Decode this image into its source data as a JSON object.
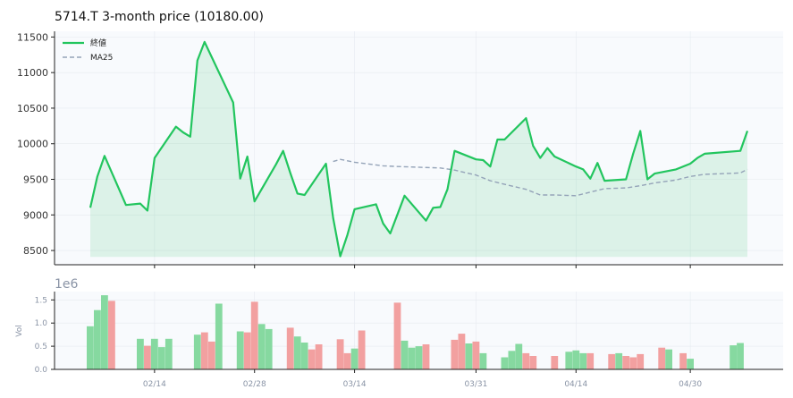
{
  "chart_data": [
    {
      "type": "line",
      "title": "5714.T  3-month price (10180.00)",
      "ylim": [
        8300,
        11580
      ],
      "yticks": [
        8500,
        9000,
        9500,
        10000,
        10500,
        11000,
        11500
      ],
      "grid": true,
      "legend_position": "top-left",
      "colors": {
        "close": "#22c55e",
        "fill": "#22c55e",
        "ma": "#94a3b8"
      },
      "series": [
        {
          "name": "終値",
          "style": "solid",
          "x": [
            "2025-02-05",
            "2025-02-06",
            "2025-02-07",
            "2025-02-10",
            "2025-02-12",
            "2025-02-13",
            "2025-02-14",
            "2025-02-17",
            "2025-02-18",
            "2025-02-19",
            "2025-02-20",
            "2025-02-21",
            "2025-02-25",
            "2025-02-26",
            "2025-02-27",
            "2025-02-28",
            "2025-03-03",
            "2025-03-04",
            "2025-03-05",
            "2025-03-06",
            "2025-03-07",
            "2025-03-10",
            "2025-03-11",
            "2025-03-12",
            "2025-03-13",
            "2025-03-14",
            "2025-03-17",
            "2025-03-18",
            "2025-03-19",
            "2025-03-21",
            "2025-03-24",
            "2025-03-25",
            "2025-03-26",
            "2025-03-27",
            "2025-03-28",
            "2025-03-31",
            "2025-04-01",
            "2025-04-02",
            "2025-04-03",
            "2025-04-04",
            "2025-04-07",
            "2025-04-08",
            "2025-04-09",
            "2025-04-10",
            "2025-04-11",
            "2025-04-14",
            "2025-04-15",
            "2025-04-16",
            "2025-04-17",
            "2025-04-18",
            "2025-04-21",
            "2025-04-22",
            "2025-04-23",
            "2025-04-24",
            "2025-04-25",
            "2025-04-28",
            "2025-04-30",
            "2025-05-01",
            "2025-05-02",
            "2025-05-07",
            "2025-05-08"
          ],
          "values": [
            9100,
            9540,
            9830,
            9140,
            9160,
            9060,
            9800,
            10240,
            10160,
            10100,
            11170,
            11430,
            10580,
            9510,
            9820,
            9190,
            9710,
            9900,
            9590,
            9300,
            9280,
            9720,
            8960,
            8420,
            8720,
            9080,
            9150,
            8880,
            8740,
            9270,
            8920,
            9100,
            9110,
            9360,
            9900,
            9780,
            9770,
            9680,
            10060,
            10060,
            10360,
            9970,
            9800,
            9940,
            9820,
            9680,
            9640,
            9510,
            9730,
            9480,
            9500,
            9860,
            10180,
            9500,
            9580,
            9640,
            9720,
            9800,
            9860,
            9900,
            10180
          ]
        },
        {
          "name": "MA25",
          "style": "dashed",
          "x": [
            "2025-03-11",
            "2025-03-12",
            "2025-03-14",
            "2025-03-18",
            "2025-03-20",
            "2025-03-26",
            "2025-03-28",
            "2025-03-31",
            "2025-04-02",
            "2025-04-04",
            "2025-04-07",
            "2025-04-09",
            "2025-04-11",
            "2025-04-14",
            "2025-04-16",
            "2025-04-18",
            "2025-04-21",
            "2025-04-23",
            "2025-04-25",
            "2025-04-28",
            "2025-04-30",
            "2025-05-02",
            "2025-05-07",
            "2025-05-08"
          ],
          "values": [
            9750,
            9780,
            9740,
            9690,
            9680,
            9660,
            9630,
            9560,
            9480,
            9430,
            9360,
            9280,
            9280,
            9270,
            9320,
            9370,
            9380,
            9410,
            9450,
            9490,
            9540,
            9570,
            9590,
            9640
          ]
        }
      ]
    },
    {
      "type": "bar",
      "ylabel": "Vol",
      "scale_label": "1e6",
      "ylim": [
        0,
        1.68
      ],
      "yticks": [
        0.0,
        0.5,
        1.0,
        1.5
      ],
      "grid": true,
      "x_tick_labels": [
        {
          "date": "2025-02-14",
          "label": "02/14"
        },
        {
          "date": "2025-02-28",
          "label": "02/28"
        },
        {
          "date": "2025-03-14",
          "label": "03/14"
        },
        {
          "date": "2025-03-31",
          "label": "03/31"
        },
        {
          "date": "2025-04-14",
          "label": "04/14"
        },
        {
          "date": "2025-04-30",
          "label": "04/30"
        }
      ],
      "colors": {
        "up": "#86d9a0",
        "down": "#f2a0a0"
      },
      "bars": [
        {
          "date": "2025-02-05",
          "volume": 0.93,
          "dir": "up"
        },
        {
          "date": "2025-02-06",
          "volume": 1.28,
          "dir": "up"
        },
        {
          "date": "2025-02-07",
          "volume": 1.6,
          "dir": "up"
        },
        {
          "date": "2025-02-08",
          "volume": 1.48,
          "dir": "down"
        },
        {
          "date": "2025-02-12",
          "volume": 0.66,
          "dir": "up"
        },
        {
          "date": "2025-02-13",
          "volume": 0.51,
          "dir": "down"
        },
        {
          "date": "2025-02-14",
          "volume": 0.66,
          "dir": "up"
        },
        {
          "date": "2025-02-15",
          "volume": 0.48,
          "dir": "up"
        },
        {
          "date": "2025-02-16",
          "volume": 0.66,
          "dir": "up"
        },
        {
          "date": "2025-02-20",
          "volume": 0.75,
          "dir": "up"
        },
        {
          "date": "2025-02-21",
          "volume": 0.8,
          "dir": "down"
        },
        {
          "date": "2025-02-22",
          "volume": 0.6,
          "dir": "down"
        },
        {
          "date": "2025-02-23",
          "volume": 1.42,
          "dir": "up"
        },
        {
          "date": "2025-02-26",
          "volume": 0.82,
          "dir": "up"
        },
        {
          "date": "2025-02-27",
          "volume": 0.8,
          "dir": "down"
        },
        {
          "date": "2025-02-28",
          "volume": 1.46,
          "dir": "down"
        },
        {
          "date": "2025-03-01",
          "volume": 0.98,
          "dir": "up"
        },
        {
          "date": "2025-03-02",
          "volume": 0.87,
          "dir": "up"
        },
        {
          "date": "2025-03-05",
          "volume": 0.9,
          "dir": "down"
        },
        {
          "date": "2025-03-06",
          "volume": 0.71,
          "dir": "up"
        },
        {
          "date": "2025-03-07",
          "volume": 0.58,
          "dir": "up"
        },
        {
          "date": "2025-03-08",
          "volume": 0.43,
          "dir": "down"
        },
        {
          "date": "2025-03-09",
          "volume": 0.54,
          "dir": "down"
        },
        {
          "date": "2025-03-12",
          "volume": 0.65,
          "dir": "down"
        },
        {
          "date": "2025-03-13",
          "volume": 0.35,
          "dir": "down"
        },
        {
          "date": "2025-03-14",
          "volume": 0.45,
          "dir": "up"
        },
        {
          "date": "2025-03-15",
          "volume": 0.84,
          "dir": "down"
        },
        {
          "date": "2025-03-20",
          "volume": 1.44,
          "dir": "down"
        },
        {
          "date": "2025-03-21",
          "volume": 0.62,
          "dir": "up"
        },
        {
          "date": "2025-03-22",
          "volume": 0.47,
          "dir": "up"
        },
        {
          "date": "2025-03-23",
          "volume": 0.5,
          "dir": "up"
        },
        {
          "date": "2025-03-24",
          "volume": 0.54,
          "dir": "down"
        },
        {
          "date": "2025-03-28",
          "volume": 0.64,
          "dir": "down"
        },
        {
          "date": "2025-03-29",
          "volume": 0.77,
          "dir": "down"
        },
        {
          "date": "2025-03-30",
          "volume": 0.56,
          "dir": "up"
        },
        {
          "date": "2025-03-31",
          "volume": 0.6,
          "dir": "down"
        },
        {
          "date": "2025-04-01",
          "volume": 0.35,
          "dir": "up"
        },
        {
          "date": "2025-04-04",
          "volume": 0.26,
          "dir": "up"
        },
        {
          "date": "2025-04-05",
          "volume": 0.4,
          "dir": "up"
        },
        {
          "date": "2025-04-06",
          "volume": 0.55,
          "dir": "up"
        },
        {
          "date": "2025-04-07",
          "volume": 0.35,
          "dir": "down"
        },
        {
          "date": "2025-04-08",
          "volume": 0.29,
          "dir": "down"
        },
        {
          "date": "2025-04-11",
          "volume": 0.29,
          "dir": "down"
        },
        {
          "date": "2025-04-13",
          "volume": 0.38,
          "dir": "up"
        },
        {
          "date": "2025-04-14",
          "volume": 0.41,
          "dir": "up"
        },
        {
          "date": "2025-04-15",
          "volume": 0.35,
          "dir": "up"
        },
        {
          "date": "2025-04-16",
          "volume": 0.35,
          "dir": "down"
        },
        {
          "date": "2025-04-19",
          "volume": 0.33,
          "dir": "down"
        },
        {
          "date": "2025-04-20",
          "volume": 0.35,
          "dir": "up"
        },
        {
          "date": "2025-04-21",
          "volume": 0.29,
          "dir": "down"
        },
        {
          "date": "2025-04-22",
          "volume": 0.26,
          "dir": "down"
        },
        {
          "date": "2025-04-23",
          "volume": 0.33,
          "dir": "down"
        },
        {
          "date": "2025-04-26",
          "volume": 0.47,
          "dir": "down"
        },
        {
          "date": "2025-04-27",
          "volume": 0.43,
          "dir": "up"
        },
        {
          "date": "2025-04-29",
          "volume": 0.35,
          "dir": "down"
        },
        {
          "date": "2025-04-30",
          "volume": 0.23,
          "dir": "up"
        },
        {
          "date": "2025-05-06",
          "volume": 0.52,
          "dir": "up"
        },
        {
          "date": "2025-05-07",
          "volume": 0.57,
          "dir": "up"
        }
      ]
    }
  ]
}
